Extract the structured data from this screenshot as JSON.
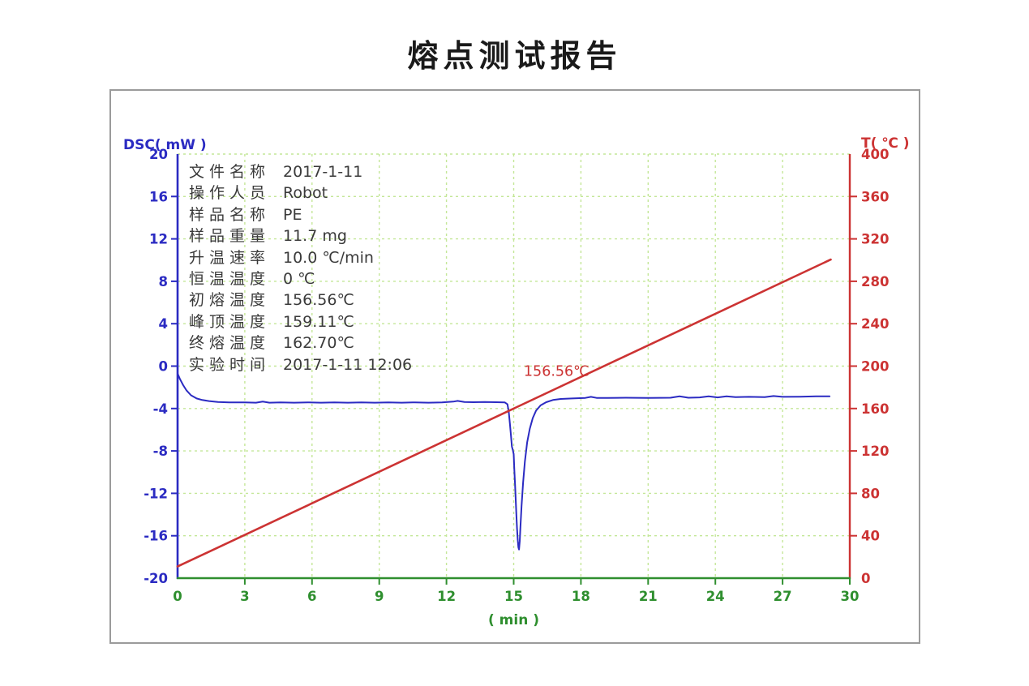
{
  "page": {
    "title": "熔点测试报告"
  },
  "info_panel": {
    "rows": [
      {
        "label": "文件名称",
        "value": "2017-1-11"
      },
      {
        "label": "操作人员",
        "value": "Robot"
      },
      {
        "label": "样品名称",
        "value": "PE"
      },
      {
        "label": "样品重量",
        "value": "11.7 mg"
      },
      {
        "label": "升温速率",
        "value": "10.0 ℃/min"
      },
      {
        "label": "恒温温度",
        "value": "0 ℃"
      },
      {
        "label": "初熔温度",
        "value": "156.56℃"
      },
      {
        "label": "峰顶温度",
        "value": "159.11℃"
      },
      {
        "label": "终熔温度",
        "value": "162.70℃"
      },
      {
        "label": "实验时间",
        "value": "2017-1-11 12:06"
      }
    ]
  },
  "chart_data": {
    "type": "line",
    "title": "熔点测试报告",
    "x_axis": {
      "label": "( min )",
      "min": 0,
      "max": 30,
      "ticks": [
        0,
        3,
        6,
        9,
        12,
        15,
        18,
        21,
        24,
        27,
        30
      ],
      "color": "#2f8f2f"
    },
    "left_axis": {
      "label": "DSC( mW )",
      "min": -20,
      "max": 20,
      "ticks": [
        20,
        16,
        12,
        8,
        4,
        0,
        -4,
        -8,
        -12,
        -16,
        -20
      ],
      "color": "#2b2bc2"
    },
    "right_axis": {
      "label": "T( ℃ )",
      "min": 0,
      "max": 400,
      "ticks": [
        400,
        360,
        320,
        280,
        240,
        200,
        160,
        120,
        80,
        40,
        0
      ],
      "color": "#cc3333"
    },
    "grid": {
      "on": true,
      "color": "#c4e798",
      "dash": "3 4"
    },
    "legend": {
      "position": "none"
    },
    "annotation": {
      "text": "156.56℃",
      "x_min": 15.45,
      "t_value": 191,
      "color": "#cc3333"
    },
    "series": [
      {
        "name": "DSC curve",
        "axis": "left",
        "color": "#2b2bc2",
        "width": 2,
        "points": [
          [
            0,
            -0.7
          ],
          [
            0.1,
            -1.2
          ],
          [
            0.25,
            -1.8
          ],
          [
            0.4,
            -2.3
          ],
          [
            0.6,
            -2.75
          ],
          [
            0.85,
            -3.05
          ],
          [
            1.1,
            -3.2
          ],
          [
            1.4,
            -3.3
          ],
          [
            1.8,
            -3.38
          ],
          [
            2.3,
            -3.42
          ],
          [
            3,
            -3.42
          ],
          [
            3.5,
            -3.45
          ],
          [
            3.8,
            -3.35
          ],
          [
            4.1,
            -3.45
          ],
          [
            4.6,
            -3.42
          ],
          [
            5.2,
            -3.45
          ],
          [
            5.8,
            -3.42
          ],
          [
            6.4,
            -3.45
          ],
          [
            7,
            -3.42
          ],
          [
            7.6,
            -3.45
          ],
          [
            8.2,
            -3.42
          ],
          [
            8.8,
            -3.45
          ],
          [
            9.4,
            -3.42
          ],
          [
            10,
            -3.45
          ],
          [
            10.6,
            -3.42
          ],
          [
            11.2,
            -3.45
          ],
          [
            11.8,
            -3.42
          ],
          [
            12.3,
            -3.35
          ],
          [
            12.5,
            -3.28
          ],
          [
            12.8,
            -3.38
          ],
          [
            13.2,
            -3.4
          ],
          [
            13.7,
            -3.38
          ],
          [
            14.2,
            -3.4
          ],
          [
            14.6,
            -3.42
          ],
          [
            14.72,
            -3.6
          ],
          [
            14.78,
            -4.3
          ],
          [
            14.83,
            -5.4
          ],
          [
            14.88,
            -6.6
          ],
          [
            14.92,
            -7.6
          ],
          [
            14.96,
            -7.9
          ],
          [
            15.0,
            -8.3
          ],
          [
            15.03,
            -9.8
          ],
          [
            15.06,
            -11.2
          ],
          [
            15.09,
            -12.6
          ],
          [
            15.12,
            -14
          ],
          [
            15.15,
            -15.3
          ],
          [
            15.18,
            -16.4
          ],
          [
            15.21,
            -17.1
          ],
          [
            15.24,
            -17.3
          ],
          [
            15.27,
            -16.5
          ],
          [
            15.3,
            -15.2
          ],
          [
            15.35,
            -13.2
          ],
          [
            15.42,
            -11
          ],
          [
            15.5,
            -9
          ],
          [
            15.6,
            -7.2
          ],
          [
            15.72,
            -5.9
          ],
          [
            15.85,
            -4.9
          ],
          [
            16,
            -4.2
          ],
          [
            16.2,
            -3.7
          ],
          [
            16.45,
            -3.4
          ],
          [
            16.75,
            -3.2
          ],
          [
            17.1,
            -3.1
          ],
          [
            17.6,
            -3.05
          ],
          [
            18.2,
            -3.0
          ],
          [
            18.45,
            -2.9
          ],
          [
            18.7,
            -3.0
          ],
          [
            19.2,
            -3.0
          ],
          [
            20,
            -2.98
          ],
          [
            21,
            -3.0
          ],
          [
            22,
            -2.98
          ],
          [
            22.4,
            -2.85
          ],
          [
            22.8,
            -2.98
          ],
          [
            23.3,
            -2.95
          ],
          [
            23.7,
            -2.85
          ],
          [
            24.1,
            -2.95
          ],
          [
            24.5,
            -2.85
          ],
          [
            24.9,
            -2.92
          ],
          [
            25.5,
            -2.9
          ],
          [
            26.2,
            -2.92
          ],
          [
            26.6,
            -2.82
          ],
          [
            27,
            -2.9
          ],
          [
            27.8,
            -2.88
          ],
          [
            28.5,
            -2.85
          ],
          [
            29.1,
            -2.85
          ]
        ]
      },
      {
        "name": "Temperature ramp",
        "axis": "right",
        "color": "#cc3333",
        "width": 2.6,
        "points": [
          [
            0,
            11
          ],
          [
            29.15,
            300.5
          ]
        ]
      }
    ]
  }
}
